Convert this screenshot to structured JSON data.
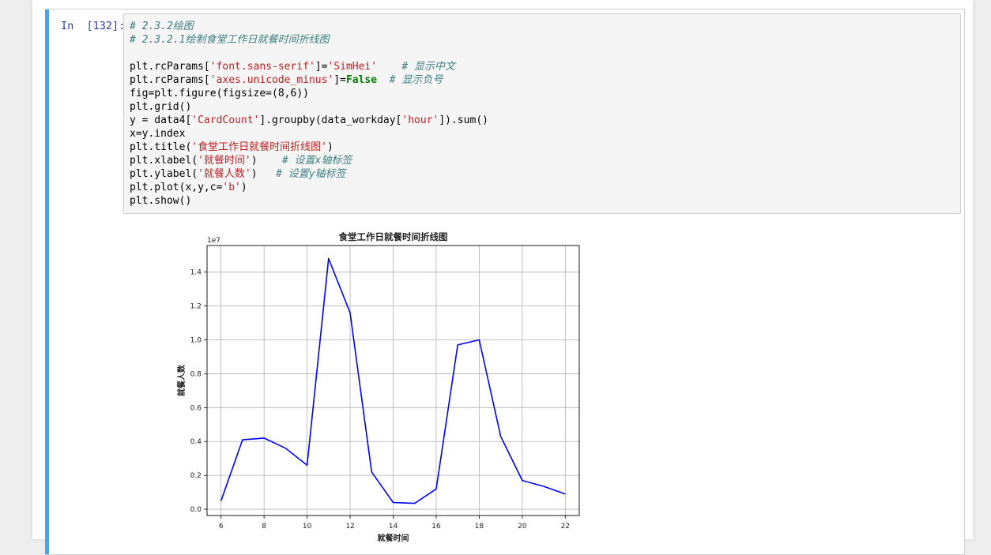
{
  "cell": {
    "prompt": "In  [132]:",
    "code_lines": [
      [
        {
          "t": "# 2.3.2绘图",
          "c": "cm"
        }
      ],
      [
        {
          "t": "# 2.3.2.1绘制食堂工作日就餐时间折线图",
          "c": "cm"
        }
      ],
      [],
      [
        {
          "t": "plt.rcParams["
        },
        {
          "t": "'font.sans-serif'",
          "c": "st"
        },
        {
          "t": "]="
        },
        {
          "t": "'SimHei'",
          "c": "st"
        },
        {
          "t": "    "
        },
        {
          "t": "# 显示中文",
          "c": "cm"
        }
      ],
      [
        {
          "t": "plt.rcParams["
        },
        {
          "t": "'axes.unicode_minus'",
          "c": "st"
        },
        {
          "t": "]="
        },
        {
          "t": "False",
          "c": "kw"
        },
        {
          "t": "  "
        },
        {
          "t": "# 显示负号",
          "c": "cm"
        }
      ],
      [
        {
          "t": "fig=plt.figure(figsize=(8,6))"
        }
      ],
      [
        {
          "t": "plt.grid()"
        }
      ],
      [
        {
          "t": "y = data4["
        },
        {
          "t": "'CardCount'",
          "c": "st"
        },
        {
          "t": "].groupby(data_workday["
        },
        {
          "t": "'hour'",
          "c": "st"
        },
        {
          "t": "]).sum()"
        }
      ],
      [
        {
          "t": "x=y.index"
        }
      ],
      [
        {
          "t": "plt.title("
        },
        {
          "t": "'食堂工作日就餐时间折线图'",
          "c": "st"
        },
        {
          "t": ")"
        }
      ],
      [
        {
          "t": "plt.xlabel("
        },
        {
          "t": "'就餐时间'",
          "c": "st"
        },
        {
          "t": ")    "
        },
        {
          "t": "# 设置x轴标签",
          "c": "cm"
        }
      ],
      [
        {
          "t": "plt.ylabel("
        },
        {
          "t": "'就餐人数'",
          "c": "st"
        },
        {
          "t": ")   "
        },
        {
          "t": "# 设置y轴标签",
          "c": "cm"
        }
      ],
      [
        {
          "t": "plt.plot(x,y,c="
        },
        {
          "t": "'b'",
          "c": "st"
        },
        {
          "t": ")"
        }
      ],
      [
        {
          "t": "plt.show()"
        }
      ]
    ]
  },
  "chart_data": {
    "type": "line",
    "title": "食堂工作日就餐时间折线图",
    "xlabel": "就餐时间",
    "ylabel": "就餐人数",
    "offset_text": "1e7",
    "x": [
      6,
      7,
      8,
      9,
      10,
      11,
      12,
      13,
      14,
      15,
      16,
      17,
      18,
      19,
      20,
      21,
      22
    ],
    "series": [
      {
        "color": "#0000ff",
        "values": [
          0.05,
          0.41,
          0.42,
          0.36,
          0.26,
          1.48,
          1.16,
          0.22,
          0.04,
          0.035,
          0.12,
          0.97,
          1.0,
          0.43,
          0.17,
          0.135,
          0.09
        ]
      }
    ],
    "xticks": [
      6,
      8,
      10,
      12,
      14,
      16,
      18,
      20,
      22
    ],
    "xtick_labels": [
      "6",
      "8",
      "10",
      "12",
      "14",
      "16",
      "18",
      "20",
      "22"
    ],
    "yticks": [
      0.0,
      0.2,
      0.4,
      0.6,
      0.8,
      1.0,
      1.2,
      1.4
    ],
    "ytick_labels": [
      "0.0",
      "0.2",
      "0.4",
      "0.6",
      "0.8",
      "1.0",
      "1.2",
      "1.4"
    ],
    "xlim": [
      5.35,
      22.65
    ],
    "ylim": [
      -0.037,
      1.557
    ],
    "grid": true
  }
}
